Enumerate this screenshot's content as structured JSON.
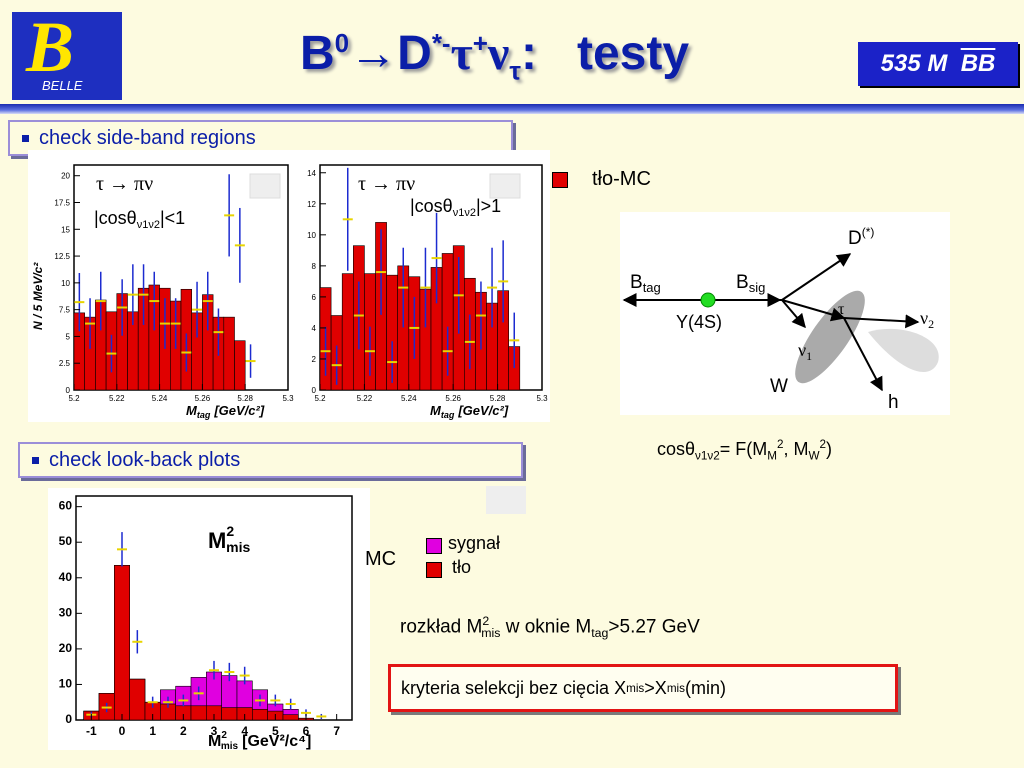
{
  "header": {
    "logo_text": "BELLE",
    "logo_letter": "B",
    "title_b": "B",
    "title_b_sup": "0",
    "title_arrow": "→",
    "title_d": "D",
    "title_d_sup": "*-",
    "title_tau": "τ",
    "title_tau_sup": "+",
    "title_nu": "ν",
    "title_nu_sub": "τ",
    "title_colon": ":",
    "title_word": "testy",
    "badge_prefix": "535 M",
    "badge_bb": "BB"
  },
  "bullets": {
    "sideband": "check side-band regions",
    "lookback": "check look-back plots"
  },
  "left_plot": {
    "decay": "τ → πν",
    "cut_pre": "|cosθ",
    "cut_sub": "ν1ν2",
    "cut_post": "|<1",
    "ylabel": "N / 5 MeV/c²",
    "xlabel_var": "M",
    "xlabel_sub": "tag",
    "xlabel_unit": "[GeV/c²]",
    "xticks": [
      "5.2",
      "5.22",
      "5.24",
      "5.26",
      "5.28",
      "5.3"
    ],
    "yticks": [
      "0",
      "2.5",
      "5",
      "7.5",
      "10",
      "12.5",
      "15",
      "17.5",
      "20"
    ]
  },
  "right_plot": {
    "decay": "τ → πν",
    "cut_pre": "|cosθ",
    "cut_sub": "ν1ν2",
    "cut_post": "|>1",
    "xlabel_var": "M",
    "xlabel_sub": "tag",
    "xlabel_unit": "[GeV/c²]",
    "xticks": [
      "5.2",
      "5.22",
      "5.24",
      "5.26",
      "5.28",
      "5.3"
    ],
    "yticks": [
      "0",
      "2",
      "4",
      "6",
      "8",
      "10",
      "12",
      "14"
    ]
  },
  "legend_top": {
    "label": "tło-MC",
    "color": "#e00000"
  },
  "diagram": {
    "btag": "B",
    "btag_sub": "tag",
    "bsig": "B",
    "bsig_sub": "sig",
    "y4s": "Y(4S)",
    "dstar": "D",
    "dstar_sup": "(*)",
    "tau": "τ",
    "nu2": "ν",
    "nu2_sub": "2",
    "nu1": "ν",
    "nu1_sub": "1",
    "w": "W",
    "h": "h"
  },
  "formula": {
    "cos": "cosθ",
    "cos_sub": "ν1ν2",
    "eq": "= F(M",
    "mm_sub": "M",
    "sq1": "2",
    "sep": ", M",
    "mw_sub": "W",
    "sq2": "2",
    "close": ")"
  },
  "bottom_plot": {
    "label_m": "M",
    "label_sup": "2",
    "label_sub": "mis",
    "xlabel_var": "M",
    "xlabel_sup": "2",
    "xlabel_sub": "mis",
    "xlabel_unit": "[GeV²/c⁴]",
    "xticks": [
      "-1",
      "0",
      "1",
      "2",
      "3",
      "4",
      "5",
      "6",
      "7"
    ],
    "yticks": [
      "0",
      "10",
      "20",
      "30",
      "40",
      "50",
      "60"
    ]
  },
  "legend_bottom": {
    "mc": "MC",
    "signal": "sygnał",
    "signal_color": "#e000e0",
    "bg": "tło",
    "bg_color": "#e00000"
  },
  "text": {
    "distr_pre": "rozkład M",
    "distr_sup": "2",
    "distr_sub": "mis",
    "distr_mid": " w oknie M",
    "distr_sub2": "tag",
    "distr_post": ">5.27 GeV",
    "crit_pre": "kryteria selekcji bez cięcia X",
    "crit_sub1": "mis",
    "crit_mid": ">X",
    "crit_sub2": "mis",
    "crit_post": "(min)"
  },
  "chart_data": [
    {
      "type": "bar",
      "title": "τ → πν |cosθν1ν2|<1",
      "xlabel": "Mtag [GeV/c²]",
      "ylabel": "N / 5 MeV/c²",
      "xlim": [
        5.2,
        5.3
      ],
      "ylim": [
        0,
        21
      ],
      "x": [
        5.2025,
        5.2075,
        5.2125,
        5.2175,
        5.2225,
        5.2275,
        5.2325,
        5.2375,
        5.2425,
        5.2475,
        5.2525,
        5.2575,
        5.2625,
        5.2675,
        5.2725,
        5.2775,
        5.2825,
        5.2875
      ],
      "series": [
        {
          "name": "tło-MC",
          "values": [
            7.2,
            6.8,
            8.4,
            7.3,
            9.0,
            7.3,
            9.5,
            9.8,
            9.5,
            8.3,
            9.4,
            7.2,
            8.9,
            6.8,
            6.8,
            4.6,
            0,
            0
          ]
        },
        {
          "values": [
            8.2,
            6.2,
            8.3,
            3.4,
            7.7,
            8.9,
            8.9,
            8.3,
            6.2,
            6.2,
            3.5,
            7.5,
            8.3,
            5.4,
            16.3,
            13.5,
            2.7,
            0
          ]
        }
      ]
    },
    {
      "type": "bar",
      "title": "τ → πν |cosθν1ν2|>1",
      "xlabel": "Mtag [GeV/c²]",
      "xlim": [
        5.2,
        5.3
      ],
      "ylim": [
        0,
        14.5
      ],
      "x": [
        5.2025,
        5.2075,
        5.2125,
        5.2175,
        5.2225,
        5.2275,
        5.2325,
        5.2375,
        5.2425,
        5.2475,
        5.2525,
        5.2575,
        5.2625,
        5.2675,
        5.2725,
        5.2775,
        5.2825,
        5.2875
      ],
      "series": [
        {
          "name": "tło-MC",
          "values": [
            6.6,
            4.8,
            7.5,
            9.3,
            7.5,
            10.8,
            7.4,
            8.0,
            7.3,
            6.5,
            7.9,
            8.8,
            9.3,
            7.2,
            6.3,
            5.6,
            6.4,
            2.8
          ]
        },
        {
          "values": [
            2.5,
            1.6,
            11.0,
            4.8,
            2.5,
            7.6,
            1.8,
            6.6,
            4.0,
            6.6,
            8.5,
            2.5,
            6.1,
            3.1,
            4.8,
            6.6,
            7.0,
            3.2
          ]
        }
      ]
    },
    {
      "type": "bar",
      "title": "M²mis",
      "xlabel": "M²mis [GeV²/c⁴]",
      "xlim": [
        -1.5,
        7.5
      ],
      "ylim": [
        0,
        63
      ],
      "x": [
        -1,
        -0.5,
        0,
        0.5,
        1,
        1.5,
        2,
        2.5,
        3,
        3.5,
        4,
        4.5,
        5,
        5.5,
        6,
        6.5
      ],
      "series": [
        {
          "name": "sygnał",
          "values": [
            2.5,
            7.5,
            43.5,
            11.5,
            5.0,
            8.5,
            9.5,
            12.0,
            13.5,
            12.5,
            11.0,
            8.5,
            4.5,
            3.0,
            0.5,
            0
          ]
        },
        {
          "name": "tło",
          "values": [
            2.5,
            7.5,
            43.5,
            11.5,
            5.0,
            4.5,
            4.0,
            4.0,
            4.0,
            3.5,
            3.5,
            3.0,
            2.5,
            1.5,
            0.5,
            0
          ]
        },
        {
          "values": [
            1.5,
            3.5,
            48.0,
            22.0,
            5.0,
            5.0,
            5.5,
            7.5,
            14.0,
            13.5,
            12.5,
            5.5,
            5.5,
            4.5,
            2.0,
            1.0
          ]
        }
      ]
    }
  ]
}
